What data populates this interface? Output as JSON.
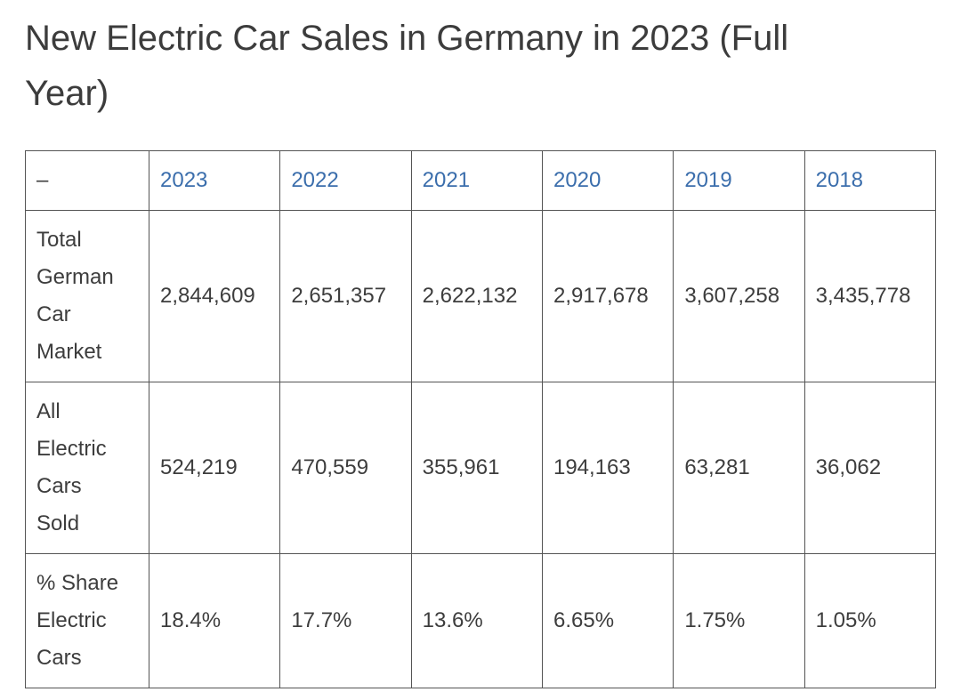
{
  "page": {
    "title": "New Electric Car Sales in Germany in 2023 (Full\nYear)"
  },
  "table": {
    "corner_label": "–",
    "columns": [
      "2023",
      "2022",
      "2021",
      "2020",
      "2019",
      "2018"
    ],
    "rows": [
      {
        "label": "Total German Car Market",
        "values": [
          "2,844,609",
          "2,651,357",
          "2,622,132",
          "2,917,678",
          "3,607,258",
          "3,435,778"
        ]
      },
      {
        "label": "All Electric Cars Sold",
        "values": [
          "524,219",
          "470,559",
          "355,961",
          "194,163",
          "63,281",
          "36,062"
        ]
      },
      {
        "label": "% Share Electric Cars",
        "values": [
          "18.4%",
          "17.7%",
          "13.6%",
          "6.65%",
          "1.75%",
          "1.05%"
        ]
      }
    ]
  },
  "colors": {
    "year_link_blue": "#3b6eac",
    "body_text": "#3d3d3d",
    "table_border": "#545454",
    "background": "#ffffff"
  },
  "chart_data": {
    "type": "table",
    "title": "New Electric Car Sales in Germany in 2023 (Full Year)",
    "categories": [
      "2023",
      "2022",
      "2021",
      "2020",
      "2019",
      "2018"
    ],
    "series": [
      {
        "name": "Total German Car Market",
        "values": [
          2844609,
          2651357,
          2622132,
          2917678,
          3607258,
          3435778
        ]
      },
      {
        "name": "All Electric Cars Sold",
        "values": [
          524219,
          470559,
          355961,
          194163,
          63281,
          36062
        ]
      },
      {
        "name": "% Share Electric Cars",
        "values": [
          18.4,
          17.7,
          13.6,
          6.65,
          1.75,
          1.05
        ]
      }
    ],
    "layout": {
      "header_row": "years descending left to right",
      "grid": "full borders"
    }
  }
}
